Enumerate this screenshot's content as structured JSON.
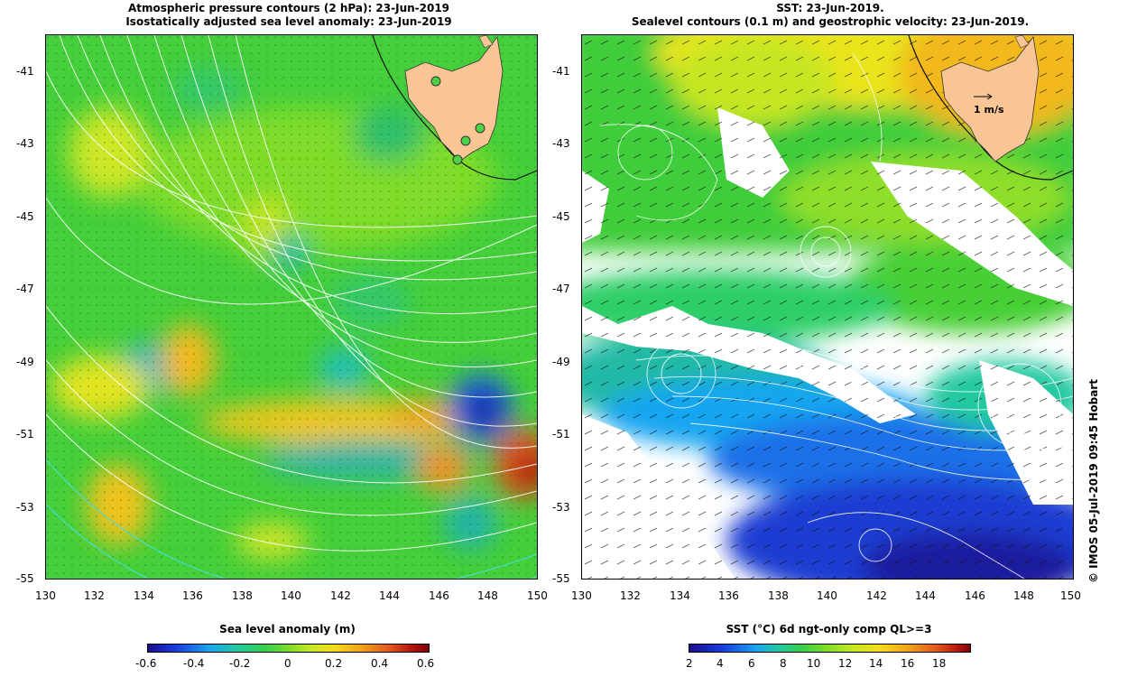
{
  "left": {
    "title_line1": "Atmospheric pressure contours (2 hPa): 23-Jun-2019",
    "title_line2": "Isostatically adjusted sea level anomaly: 23-Jun-2019",
    "colorbar_title": "Sea level anomaly (m)",
    "colorbar_ticks": [
      "-0.6",
      "-0.4",
      "-0.2",
      "0",
      "0.2",
      "0.4",
      "0.6"
    ],
    "colorbar_range": [
      -0.6,
      0.6
    ]
  },
  "right": {
    "title_line1": "SST: 23-Jun-2019.",
    "title_line2": "Sealevel contours (0.1 m) and geostrophic velocity: 23-Jun-2019.",
    "velocity_scale_label": "1 m/s",
    "colorbar_title": "SST (°C) 6d ngt-only comp QL>=3",
    "colorbar_ticks": [
      "2",
      "4",
      "6",
      "8",
      "10",
      "12",
      "14",
      "16",
      "18"
    ],
    "colorbar_range": [
      1.2,
      19.2
    ]
  },
  "map_extent": {
    "lon_range": [
      130,
      150
    ],
    "lat_range": [
      -55,
      -40
    ]
  },
  "lat_ticks": [
    "-41",
    "-43",
    "-45",
    "-47",
    "-49",
    "-51",
    "-53",
    "-55"
  ],
  "lon_ticks": [
    "130",
    "132",
    "134",
    "136",
    "138",
    "140",
    "142",
    "144",
    "146",
    "148",
    "150"
  ],
  "copyright": "© IMOS 05-Jul-2019 09:45 Hobart",
  "colors": {
    "land": "#f9c595",
    "contour_white": "#ffffff",
    "contour_cyan": "#40e0e8",
    "site_marker": "#4ed24a"
  },
  "stations": [
    {
      "lon": 145.9,
      "lat": -41.2
    },
    {
      "lon": 147.2,
      "lat": -42.9
    },
    {
      "lon": 147.8,
      "lat": -42.6
    },
    {
      "lon": 146.8,
      "lat": -43.5
    }
  ]
}
